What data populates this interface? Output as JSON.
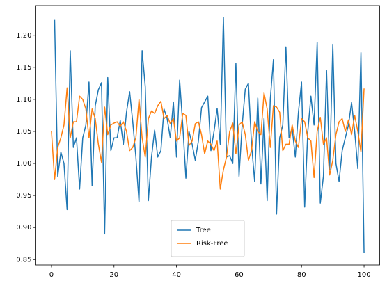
{
  "chart_data": {
    "type": "line",
    "x": [
      0,
      1,
      2,
      3,
      4,
      5,
      6,
      7,
      8,
      9,
      10,
      11,
      12,
      13,
      14,
      15,
      16,
      17,
      18,
      19,
      20,
      21,
      22,
      23,
      24,
      25,
      26,
      27,
      28,
      29,
      30,
      31,
      32,
      33,
      34,
      35,
      36,
      37,
      38,
      39,
      40,
      41,
      42,
      43,
      44,
      45,
      46,
      47,
      48,
      49,
      50,
      51,
      52,
      53,
      54,
      55,
      56,
      57,
      58,
      59,
      60,
      61,
      62,
      63,
      64,
      65,
      66,
      67,
      68,
      69,
      70,
      71,
      72,
      73,
      74,
      75,
      76,
      77,
      78,
      79,
      80,
      81,
      82,
      83,
      84,
      85,
      86,
      87,
      88,
      89,
      90,
      91,
      92,
      93,
      94,
      95,
      96,
      97,
      98,
      99,
      100
    ],
    "series": [
      {
        "name": "Tree",
        "color": "#1f77b4",
        "values": [
          null,
          1.224,
          0.98,
          1.018,
          1.0,
          0.928,
          1.176,
          1.025,
          1.04,
          0.96,
          1.04,
          1.06,
          1.127,
          0.965,
          1.09,
          1.115,
          1.126,
          0.89,
          1.134,
          1.02,
          1.04,
          1.04,
          1.067,
          1.03,
          1.08,
          1.112,
          1.065,
          1.01,
          0.94,
          1.176,
          1.12,
          0.942,
          1.01,
          1.052,
          1.01,
          1.02,
          1.085,
          1.07,
          1.04,
          1.096,
          1.01,
          1.13,
          1.06,
          0.977,
          1.05,
          1.03,
          1.005,
          1.035,
          1.087,
          1.096,
          1.105,
          1.02,
          1.05,
          1.086,
          1.03,
          1.228,
          1.01,
          1.012,
          1.0,
          1.156,
          0.98,
          1.06,
          1.116,
          1.125,
          1.03,
          0.972,
          1.102,
          0.968,
          1.07,
          0.942,
          1.1,
          1.162,
          0.921,
          1.04,
          1.06,
          1.182,
          1.04,
          1.055,
          1.01,
          1.08,
          1.127,
          0.932,
          1.05,
          1.105,
          1.06,
          1.189,
          0.938,
          0.98,
          1.145,
          0.99,
          1.186,
          1.0,
          0.972,
          1.02,
          1.04,
          1.06,
          1.095,
          1.05,
          0.992,
          1.173,
          0.86
        ]
      },
      {
        "name": "Risk-Free",
        "color": "#ff7f0e",
        "values": [
          1.05,
          0.975,
          1.025,
          1.04,
          1.06,
          1.118,
          1.04,
          1.065,
          1.065,
          1.105,
          1.1,
          1.085,
          1.04,
          1.085,
          1.07,
          1.03,
          1.002,
          1.088,
          1.045,
          1.06,
          1.063,
          1.065,
          1.058,
          1.065,
          1.05,
          1.02,
          1.025,
          1.04,
          1.1,
          1.04,
          1.01,
          1.07,
          1.082,
          1.078,
          1.09,
          1.097,
          1.07,
          1.075,
          1.062,
          1.07,
          1.035,
          1.04,
          1.078,
          1.075,
          1.028,
          1.035,
          1.062,
          1.065,
          1.045,
          1.015,
          1.035,
          1.03,
          1.02,
          1.035,
          0.96,
          0.99,
          1.01,
          1.05,
          1.063,
          1.015,
          1.06,
          1.065,
          1.045,
          1.005,
          1.02,
          1.065,
          1.05,
          1.045,
          1.11,
          1.085,
          1.025,
          1.09,
          1.088,
          1.08,
          1.02,
          1.03,
          1.03,
          1.06,
          1.035,
          1.025,
          1.07,
          1.065,
          1.04,
          1.035,
          0.978,
          1.05,
          1.072,
          1.03,
          1.04,
          0.982,
          1.005,
          1.045,
          1.065,
          1.07,
          1.05,
          1.068,
          1.045,
          1.075,
          1.05,
          1.018,
          1.117
        ]
      }
    ],
    "xlim": [
      -5,
      105
    ],
    "xticks": [
      0,
      20,
      40,
      60,
      80,
      100
    ],
    "ylim": [
      0.8416,
      1.2464
    ],
    "yticks": [
      0.85,
      {
        "value": 0.9,
        "label": "0.90"
      },
      0.95,
      {
        "value": 1.0,
        "label": "1.00"
      },
      1.05,
      {
        "value": 1.1,
        "label": "1.10"
      },
      1.15,
      {
        "value": 1.2,
        "label": "1.20"
      }
    ],
    "legend": "lower center",
    "grid": false
  }
}
